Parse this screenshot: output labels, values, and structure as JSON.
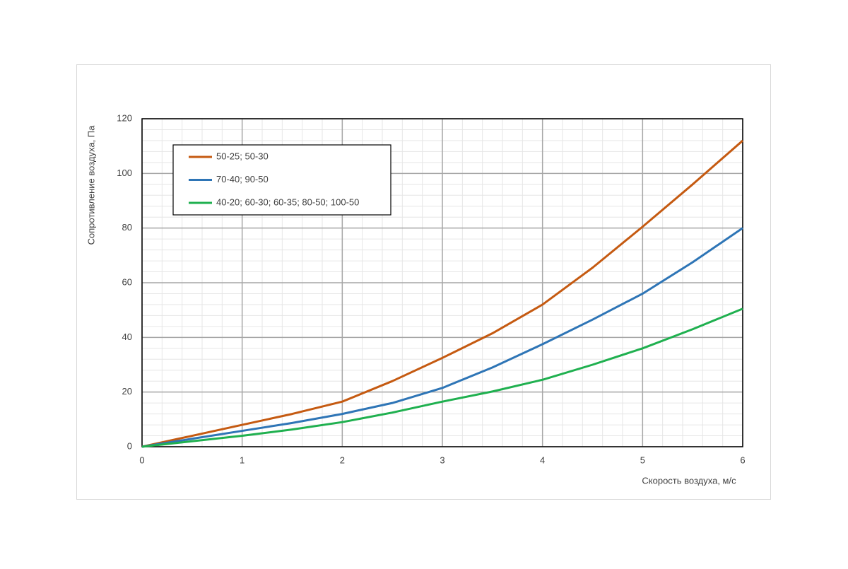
{
  "chart_data": {
    "type": "line",
    "xlabel": "Скорость воздуха, м/с",
    "ylabel": "Сопротивление воздуха, Па",
    "x": [
      0,
      0.5,
      1,
      1.5,
      2,
      2.5,
      3,
      3.5,
      4,
      4.5,
      5,
      5.5,
      6
    ],
    "series": [
      {
        "name": "50-25; 50-30",
        "color": "#c55a11",
        "values": [
          0,
          4,
          8,
          12,
          16.5,
          24,
          32.5,
          41.5,
          52,
          65.5,
          80.5,
          96,
          112
        ]
      },
      {
        "name": "70-40; 90-50",
        "color": "#2e75b6",
        "values": [
          0,
          2.9,
          5.8,
          8.7,
          12,
          16,
          21.5,
          29,
          37.5,
          46.5,
          56,
          67.5,
          80
        ]
      },
      {
        "name": "40-20; 60-30; 60-35; 80-50; 100-50",
        "color": "#1fb04f",
        "values": [
          0,
          2,
          4,
          6.3,
          9,
          12.5,
          16.5,
          20.2,
          24.5,
          30,
          36,
          43,
          50.5
        ]
      }
    ],
    "xlim": [
      0,
      6
    ],
    "xticks": [
      0,
      1,
      2,
      3,
      4,
      5,
      6
    ],
    "ylim": [
      0,
      120
    ],
    "yticks": [
      0,
      20,
      40,
      60,
      80,
      100,
      120
    ],
    "grid": true,
    "minor_grid": true,
    "legend": "upper left"
  }
}
